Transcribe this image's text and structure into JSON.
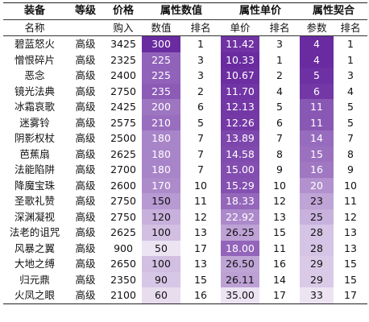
{
  "table": {
    "group_headers": [
      "装备",
      "等级",
      "价格",
      "属性数值",
      "属性单价",
      "属性契合"
    ],
    "sub_headers": [
      "名称",
      "",
      "购入",
      "数值",
      "排名",
      "单价",
      "排名",
      "参数",
      "排名"
    ],
    "rows": [
      [
        "碧蓝怒火",
        "高级",
        "3425",
        "300",
        "1",
        "11.42",
        "3",
        "4",
        "1"
      ],
      [
        "憎恨碎片",
        "高级",
        "2325",
        "225",
        "3",
        "10.33",
        "1",
        "4",
        "1"
      ],
      [
        "恶念",
        "高级",
        "2400",
        "225",
        "3",
        "10.67",
        "2",
        "5",
        "3"
      ],
      [
        "镜光法典",
        "高级",
        "2750",
        "235",
        "2",
        "11.70",
        "4",
        "6",
        "4"
      ],
      [
        "冰霜哀歌",
        "高级",
        "2425",
        "200",
        "6",
        "12.13",
        "5",
        "11",
        "5"
      ],
      [
        "迷雾铃",
        "高级",
        "2575",
        "210",
        "5",
        "12.26",
        "6",
        "11",
        "5"
      ],
      [
        "阴影权杖",
        "高级",
        "2500",
        "180",
        "7",
        "13.89",
        "7",
        "14",
        "7"
      ],
      [
        "芭蕉扇",
        "高级",
        "2625",
        "180",
        "7",
        "14.58",
        "8",
        "15",
        "8"
      ],
      [
        "法能陷阱",
        "高级",
        "2700",
        "180",
        "7",
        "15.00",
        "9",
        "16",
        "9"
      ],
      [
        "降魔宝珠",
        "高级",
        "2600",
        "170",
        "10",
        "15.29",
        "10",
        "20",
        "10"
      ],
      [
        "圣歌礼赞",
        "高级",
        "2750",
        "150",
        "11",
        "18.33",
        "12",
        "23",
        "11"
      ],
      [
        "深渊凝视",
        "高级",
        "2750",
        "120",
        "12",
        "22.92",
        "13",
        "25",
        "12"
      ],
      [
        "法老的诅咒",
        "高级",
        "2625",
        "100",
        "13",
        "26.25",
        "15",
        "28",
        "13"
      ],
      [
        "风暴之翼",
        "高级",
        "900",
        "50",
        "17",
        "18.00",
        "11",
        "28",
        "13"
      ],
      [
        "大地之缚",
        "高级",
        "2650",
        "100",
        "13",
        "26.50",
        "16",
        "29",
        "15"
      ],
      [
        "归元鼎",
        "高级",
        "2350",
        "90",
        "15",
        "26.11",
        "14",
        "29",
        "15"
      ],
      [
        "火凤之眼",
        "高级",
        "2100",
        "60",
        "16",
        "35.00",
        "17",
        "33",
        "17"
      ]
    ]
  },
  "colors": {
    "heat_high": "#6a2ba0",
    "heat_low": "#f7f4fa",
    "border": "#333333"
  }
}
